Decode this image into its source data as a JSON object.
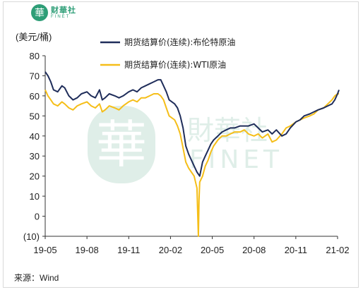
{
  "header": {
    "logo_glyph": "華",
    "logo_cn": "财華社",
    "logo_en": "FINET"
  },
  "unit_label": "(美元/桶)",
  "source": "来源：Wind",
  "watermark": {
    "glyph": "華",
    "cn": "財華社",
    "en": "FINET"
  },
  "colors": {
    "brent": "#1f2d5a",
    "wti": "#f5be18",
    "brand": "#2e9e77"
  },
  "chart_data": {
    "type": "line",
    "title": "",
    "xlabel": "",
    "ylabel": "(美元/桶)",
    "ylim": [
      -10,
      80
    ],
    "yticks": [
      "80",
      "70",
      "60",
      "50",
      "40",
      "30",
      "20",
      "10",
      "0",
      "(10)"
    ],
    "ytick_values": [
      80,
      70,
      60,
      50,
      40,
      30,
      20,
      10,
      0,
      -10
    ],
    "xtick_labels": [
      "19-05",
      "19-08",
      "19-11",
      "20-02",
      "20-05",
      "20-08",
      "20-11",
      "21-02"
    ],
    "xtick_values": [
      0,
      3,
      6,
      9,
      12,
      15,
      18,
      21
    ],
    "x_unit": "months since 2019-05",
    "legend_position": "top",
    "grid": false,
    "series": [
      {
        "name": "期货结算价(连续):布伦特原油",
        "color": "#1f2d5a",
        "x": [
          0,
          0.2,
          0.4,
          0.6,
          0.9,
          1.2,
          1.4,
          1.7,
          2.0,
          2.3,
          2.6,
          3.0,
          3.3,
          3.6,
          3.9,
          4.1,
          4.3,
          4.6,
          5.0,
          5.3,
          5.6,
          6.0,
          6.3,
          6.6,
          6.9,
          7.2,
          7.5,
          7.8,
          8.1,
          8.3,
          8.5,
          8.7,
          8.9,
          9.1,
          9.3,
          9.5,
          9.7,
          9.9,
          10.1,
          10.3,
          10.5,
          10.7,
          10.9,
          11.1,
          11.3,
          11.5,
          11.7,
          11.9,
          12.1,
          12.4,
          12.7,
          13.0,
          13.3,
          13.6,
          14.0,
          14.3,
          14.6,
          15.0,
          15.3,
          15.6,
          16.0,
          16.3,
          16.6,
          17.0,
          17.3,
          17.6,
          18.0,
          18.3,
          18.6,
          19.0,
          19.3,
          19.6,
          20.0,
          20.3,
          20.6,
          20.8,
          21.0,
          21.1
        ],
        "values": [
          72,
          70,
          67,
          63,
          62,
          65,
          64,
          60,
          58,
          59,
          61,
          62,
          60,
          59,
          63,
          58,
          59,
          61,
          60,
          59,
          60,
          62,
          63,
          62,
          64,
          65,
          66,
          67,
          68,
          68,
          65,
          62,
          58,
          57,
          56,
          54,
          50,
          44,
          35,
          31,
          28,
          25,
          22,
          20,
          27,
          30,
          33,
          36,
          38,
          40,
          42,
          43,
          44,
          44,
          45,
          45,
          45,
          46,
          44,
          42,
          43,
          41,
          43,
          40,
          41,
          44,
          47,
          48,
          50,
          51,
          52,
          53,
          54,
          55,
          56,
          58,
          61,
          63
        ]
      },
      {
        "name": "期货结算价(连续):WTI原油",
        "color": "#f5be18",
        "x": [
          0,
          0.2,
          0.4,
          0.6,
          0.9,
          1.2,
          1.4,
          1.7,
          2.0,
          2.3,
          2.6,
          3.0,
          3.3,
          3.6,
          3.9,
          4.1,
          4.3,
          4.6,
          5.0,
          5.3,
          5.6,
          6.0,
          6.3,
          6.6,
          6.9,
          7.2,
          7.5,
          7.8,
          8.1,
          8.3,
          8.5,
          8.7,
          8.9,
          9.1,
          9.3,
          9.5,
          9.7,
          9.9,
          10.1,
          10.3,
          10.5,
          10.7,
          10.9,
          11.0,
          11.05,
          11.1,
          11.3,
          11.5,
          11.7,
          11.9,
          12.1,
          12.4,
          12.7,
          13.0,
          13.3,
          13.6,
          14.0,
          14.3,
          14.6,
          15.0,
          15.3,
          15.6,
          16.0,
          16.3,
          16.6,
          17.0,
          17.3,
          17.6,
          18.0,
          18.3,
          18.6,
          19.0,
          19.3,
          19.6,
          20.0,
          20.3,
          20.6,
          20.8,
          21.0,
          21.1
        ],
        "values": [
          63,
          60,
          58,
          56,
          55,
          57,
          56,
          54,
          53,
          55,
          56,
          57,
          55,
          54,
          56,
          52,
          53,
          55,
          54,
          53,
          55,
          57,
          58,
          57,
          59,
          59,
          60,
          61,
          61,
          60,
          58,
          54,
          50,
          49,
          48,
          45,
          41,
          34,
          27,
          24,
          22,
          20,
          14,
          -10,
          8,
          17,
          20,
          25,
          28,
          32,
          35,
          38,
          40,
          40,
          41,
          42,
          42,
          43,
          41,
          40,
          41,
          39,
          41,
          37,
          38,
          41,
          44,
          45,
          47,
          48,
          49,
          50,
          51,
          53,
          54,
          56,
          58,
          60,
          61,
          61
        ]
      }
    ]
  }
}
